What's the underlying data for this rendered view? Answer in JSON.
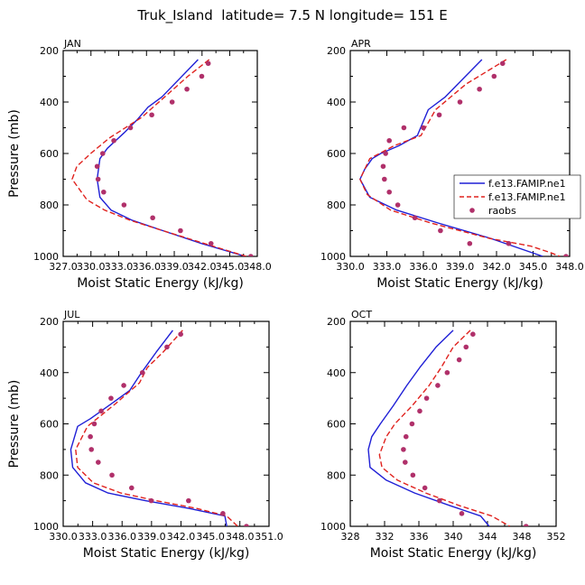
{
  "title": "Truk_Island  latitude= 7.5 N longitude= 151 E",
  "legend": {
    "entries": [
      {
        "label": "f.e13.FAMIP.ne1",
        "style": "solid",
        "color": "#1f1fd6"
      },
      {
        "label": "f.e13.FAMIP.ne1",
        "style": "dashed",
        "color": "#e0221e"
      },
      {
        "label": "raobs",
        "style": "dot",
        "color": "#b0306a"
      }
    ]
  },
  "chart_data": [
    {
      "type": "line",
      "panel_label": "JAN",
      "xlabel": "Moist Static Energy (kJ/kg)",
      "ylabel": "Pressure (mb)",
      "xlim": [
        327.03,
        348.0
      ],
      "ylim": [
        200,
        1000
      ],
      "xtick_values": [
        327.03,
        330.03,
        333.03,
        336.03,
        339.03,
        342.03,
        345.03,
        348.0
      ],
      "xtick_labels": [
        "327.0",
        "330.0",
        "333.0",
        "336.0",
        "339.0",
        "342.0",
        "345.0",
        "348.0"
      ],
      "ytick_values": [
        200,
        400,
        600,
        800,
        1000
      ],
      "ytick_labels": [
        "200",
        "400",
        "600",
        "800",
        "1000"
      ],
      "series": [
        {
          "name": "f.e13.FAMIP.ne1",
          "style": "solid",
          "color": "#1f1fd6",
          "x": [
            341.6,
            337.7,
            336.2,
            335.0,
            333.6,
            331.8,
            331.0,
            330.7,
            331.0,
            332.2,
            334.5,
            337.8,
            342.0,
            346.7
          ],
          "y": [
            235,
            380,
            420,
            470,
            520,
            580,
            620,
            700,
            770,
            820,
            860,
            900,
            950,
            1000
          ]
        },
        {
          "name": "f.e13.FAMIP.ne1",
          "style": "dashed",
          "color": "#e0221e",
          "x": [
            342.8,
            340.5,
            338.0,
            335.5,
            332.0,
            330.0,
            328.5,
            328.0,
            329.6,
            331.5,
            334.3,
            337.8,
            342.3,
            346.8
          ],
          "y": [
            235,
            300,
            380,
            460,
            540,
            600,
            650,
            700,
            780,
            820,
            860,
            900,
            950,
            1000
          ]
        },
        {
          "name": "raobs",
          "style": "dot",
          "color": "#b0306a",
          "x": [
            342.7,
            342.0,
            340.4,
            338.8,
            336.6,
            334.3,
            332.5,
            331.3,
            330.7,
            330.8,
            331.4,
            333.6,
            336.7,
            339.7,
            343.0,
            347.3
          ],
          "y": [
            250,
            300,
            350,
            400,
            450,
            500,
            550,
            600,
            650,
            700,
            750,
            800,
            850,
            900,
            950,
            1000
          ]
        }
      ]
    },
    {
      "type": "line",
      "panel_label": "APR",
      "xlabel": "Moist Static Energy (kJ/kg)",
      "ylabel": "",
      "xlim": [
        330.0,
        348.0
      ],
      "ylim": [
        200,
        1000
      ],
      "xtick_values": [
        330,
        333,
        336,
        339,
        342,
        345,
        348
      ],
      "xtick_labels": [
        "330.0",
        "333.0",
        "336.0",
        "339.0",
        "342.0",
        "345.0",
        "348.0"
      ],
      "ytick_values": [
        200,
        400,
        600,
        800,
        1000
      ],
      "ytick_labels": [
        "200",
        "400",
        "600",
        "800",
        "1000"
      ],
      "series": [
        {
          "name": "f.e13.FAMIP.ne1",
          "style": "solid",
          "color": "#1f1fd6",
          "x": [
            340.8,
            337.8,
            336.4,
            335.5,
            334.0,
            332.5,
            331.8,
            331.2,
            330.8,
            331.6,
            333.8,
            337.2,
            341.5,
            345.8
          ],
          "y": [
            235,
            380,
            430,
            530,
            570,
            600,
            620,
            660,
            700,
            770,
            820,
            870,
            930,
            1000
          ]
        },
        {
          "name": "f.e13.FAMIP.ne1",
          "style": "dashed",
          "color": "#e0221e",
          "x": [
            342.8,
            339.5,
            337.0,
            335.8,
            333.6,
            331.6,
            330.8,
            331.4,
            333.3,
            336.6,
            341.4,
            344.8,
            346.4,
            347.2
          ],
          "y": [
            235,
            330,
            430,
            530,
            570,
            620,
            700,
            760,
            820,
            870,
            930,
            960,
            985,
            1000
          ]
        },
        {
          "name": "raobs",
          "style": "dot",
          "color": "#b0306a",
          "x": [
            342.5,
            341.8,
            340.6,
            339.0,
            337.3,
            336.0,
            334.4,
            333.2,
            332.9,
            332.7,
            332.8,
            333.2,
            333.9,
            335.3,
            337.4,
            339.8,
            343.0,
            347.7
          ],
          "y": [
            250,
            300,
            350,
            400,
            450,
            500,
            500,
            550,
            600,
            650,
            700,
            750,
            800,
            850,
            900,
            950,
            950,
            1000
          ]
        }
      ]
    },
    {
      "type": "line",
      "panel_label": "JUL",
      "xlabel": "Moist Static Energy (kJ/kg)",
      "ylabel": "Pressure (mb)",
      "xlim": [
        330.03,
        351.0
      ],
      "ylim": [
        200,
        1000
      ],
      "xtick_values": [
        330.03,
        333.03,
        336.03,
        339.03,
        342.03,
        345.03,
        348.03,
        351.0
      ],
      "xtick_labels": [
        "330.0",
        "333.0",
        "336.0",
        "339.0",
        "342.0",
        "345.0",
        "348.0",
        "351.0"
      ],
      "ytick_values": [
        200,
        400,
        600,
        800,
        1000
      ],
      "ytick_labels": [
        "200",
        "400",
        "600",
        "800",
        "1000"
      ],
      "series": [
        {
          "name": "f.e13.FAMIP.ne1",
          "style": "solid",
          "color": "#1f1fd6",
          "x": [
            341.2,
            339.5,
            338.0,
            336.8,
            335.0,
            332.8,
            331.5,
            330.8,
            331.0,
            332.3,
            334.6,
            338.4,
            342.8,
            346.5,
            346.7
          ],
          "y": [
            235,
            320,
            400,
            470,
            520,
            580,
            610,
            700,
            770,
            830,
            870,
            900,
            930,
            960,
            1000
          ]
        },
        {
          "name": "f.e13.FAMIP.ne1",
          "style": "dashed",
          "color": "#e0221e",
          "x": [
            342.2,
            340.2,
            338.6,
            337.8,
            335.4,
            332.5,
            331.3,
            331.5,
            333.1,
            335.9,
            339.5,
            343.6,
            346.7,
            347.8
          ],
          "y": [
            235,
            320,
            380,
            440,
            520,
            610,
            700,
            770,
            830,
            870,
            900,
            930,
            960,
            1000
          ]
        },
        {
          "name": "raobs",
          "style": "dot",
          "color": "#b0306a",
          "x": [
            342.0,
            340.6,
            338.1,
            336.2,
            334.9,
            333.9,
            333.2,
            332.8,
            332.9,
            333.6,
            335.0,
            337.0,
            339.0,
            342.8,
            346.3,
            348.7
          ],
          "y": [
            250,
            300,
            400,
            450,
            500,
            550,
            600,
            650,
            700,
            750,
            800,
            850,
            900,
            900,
            950,
            1000
          ]
        }
      ]
    },
    {
      "type": "line",
      "panel_label": "OCT",
      "xlabel": "Moist Static Energy (kJ/kg)",
      "ylabel": "",
      "xlim": [
        328,
        352
      ],
      "ylim": [
        200,
        1000
      ],
      "xtick_values": [
        328,
        332,
        336,
        340,
        344,
        348,
        352
      ],
      "xtick_labels": [
        "328",
        "332",
        "336",
        "340",
        "344",
        "348",
        "352"
      ],
      "ytick_values": [
        200,
        400,
        600,
        800,
        1000
      ],
      "ytick_labels": [
        "200",
        "400",
        "600",
        "800",
        "1000"
      ],
      "series": [
        {
          "name": "f.e13.FAMIP.ne1",
          "style": "solid",
          "color": "#1f1fd6",
          "x": [
            340.0,
            338.0,
            336.1,
            334.6,
            333.0,
            331.5,
            330.5,
            330.1,
            330.3,
            332.2,
            335.5,
            339.7,
            343.2,
            344.2
          ],
          "y": [
            235,
            300,
            380,
            450,
            530,
            600,
            650,
            700,
            770,
            820,
            870,
            920,
            960,
            1000
          ]
        },
        {
          "name": "f.e13.FAMIP.ne1",
          "style": "dashed",
          "color": "#e0221e",
          "x": [
            342.0,
            340.0,
            338.6,
            337.2,
            335.2,
            333.2,
            332.2,
            331.4,
            331.7,
            333.5,
            336.8,
            340.8,
            344.5,
            346.6
          ],
          "y": [
            235,
            300,
            380,
            450,
            530,
            600,
            650,
            720,
            770,
            820,
            870,
            920,
            960,
            1000
          ]
        },
        {
          "name": "raobs",
          "style": "dot",
          "color": "#b0306a",
          "x": [
            342.3,
            341.5,
            340.7,
            339.3,
            338.2,
            336.9,
            336.1,
            335.2,
            334.5,
            334.2,
            334.4,
            335.3,
            336.7,
            338.4,
            341.0,
            348.5
          ],
          "y": [
            250,
            300,
            350,
            400,
            450,
            500,
            550,
            600,
            650,
            700,
            750,
            800,
            850,
            900,
            950,
            1000
          ]
        }
      ]
    }
  ]
}
